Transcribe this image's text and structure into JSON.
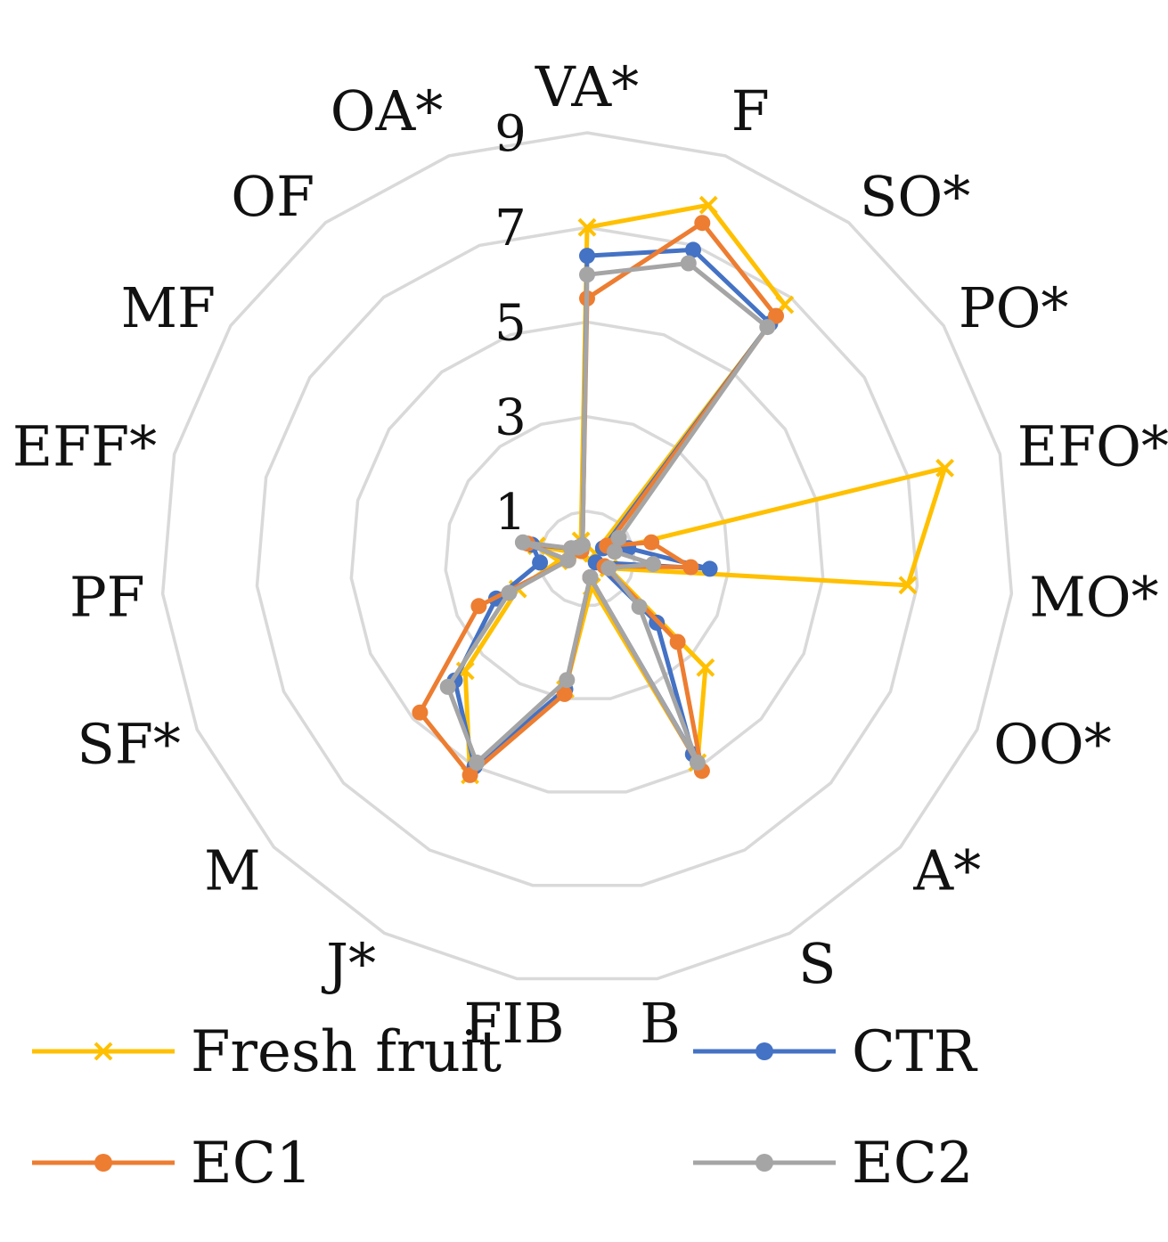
{
  "chart_data": {
    "type": "radar",
    "title": "",
    "axes": [
      "VA*",
      "F",
      "SO*",
      "PO*",
      "EFO*",
      "MO*",
      "OO*",
      "A*",
      "S",
      "B",
      "FIB",
      "J*",
      "M",
      "SF*",
      "PF",
      "EFF*",
      "MF",
      "OF",
      "OA*"
    ],
    "rlim": [
      0,
      9
    ],
    "ticks": [
      1,
      3,
      5,
      7,
      9
    ],
    "grid": true,
    "legend_position": "bottom",
    "series": [
      {
        "name": "Fresh fruit",
        "color": "#FFC000",
        "marker": "x",
        "values": [
          7.0,
          7.9,
          6.8,
          0.2,
          7.8,
          6.8,
          0.5,
          3.4,
          4.9,
          0.6,
          2.8,
          5.2,
          3.5,
          1.6,
          0.6,
          1.1,
          0.2,
          0.2,
          0.4
        ]
      },
      {
        "name": "CTR",
        "color": "#4472C4",
        "marker": "dot",
        "values": [
          6.4,
          6.9,
          6.3,
          0.4,
          0.9,
          2.6,
          0.2,
          2.0,
          4.7,
          0.4,
          2.8,
          5.0,
          3.8,
          2.1,
          1.0,
          1.2,
          0.4,
          0.3,
          0.3
        ]
      },
      {
        "name": "EC1",
        "color": "#ED7D31",
        "marker": "dot",
        "values": [
          5.5,
          7.5,
          6.5,
          0.5,
          1.4,
          2.2,
          0.4,
          2.6,
          5.1,
          0.4,
          2.9,
          5.2,
          4.8,
          2.5,
          0.4,
          1.3,
          0.4,
          0.2,
          0.3
        ]
      },
      {
        "name": "EC2",
        "color": "#A5A5A5",
        "marker": "dot",
        "values": [
          6.0,
          6.6,
          6.2,
          0.8,
          0.6,
          1.4,
          0.5,
          1.5,
          4.9,
          0.4,
          2.6,
          4.9,
          4.0,
          1.8,
          0.4,
          1.4,
          0.4,
          0.3,
          0.3
        ]
      }
    ]
  }
}
